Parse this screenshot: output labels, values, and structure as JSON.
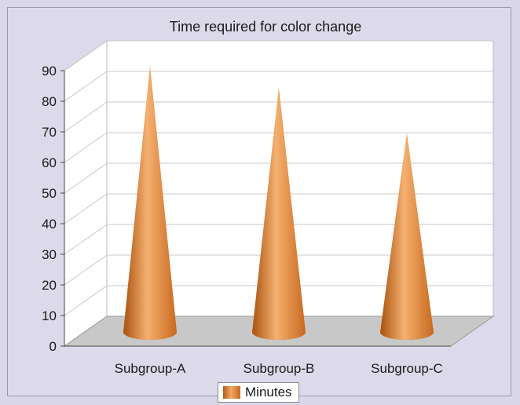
{
  "chart_data": {
    "type": "bar",
    "style": "3d-cone",
    "title": "Time required for color change",
    "categories": [
      "Subgroup-A",
      "Subgroup-B",
      "Subgroup-C"
    ],
    "series": [
      {
        "name": "Minutes",
        "values": [
          85,
          78,
          63
        ]
      }
    ],
    "ylim": [
      0,
      90
    ],
    "yticks": [
      "0",
      "10",
      "20",
      "30",
      "40",
      "50",
      "60",
      "70",
      "80",
      "90"
    ],
    "grid": true,
    "legend": "bottom",
    "colors": {
      "cone_dark": "#b35a17",
      "cone_light": "#f5b070",
      "floor": "#c8c8c8",
      "wall": "#ffffff"
    }
  }
}
